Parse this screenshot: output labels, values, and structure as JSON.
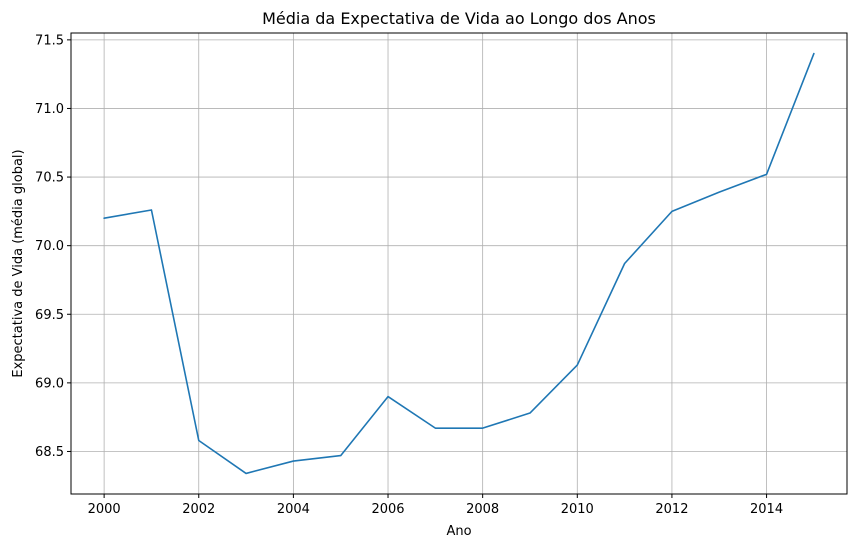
{
  "chart_data": {
    "type": "line",
    "title": "Média da Expectativa de Vida ao Longo dos Anos",
    "xlabel": "Ano",
    "ylabel": "Expectativa de Vida (média global)",
    "xlim": [
      1999.3,
      2015.7
    ],
    "ylim": [
      68.19,
      71.55
    ],
    "xticks": [
      2000,
      2002,
      2004,
      2006,
      2008,
      2010,
      2012,
      2014
    ],
    "xtick_labels": [
      "2000",
      "2002",
      "2004",
      "2006",
      "2008",
      "2010",
      "2012",
      "2014"
    ],
    "yticks": [
      68.5,
      69.0,
      69.5,
      70.0,
      70.5,
      71.0,
      71.5
    ],
    "ytick_labels": [
      "68.5",
      "69.0",
      "69.5",
      "70.0",
      "70.5",
      "71.0",
      "71.5"
    ],
    "grid": true,
    "series": [
      {
        "color": "#1f77b4",
        "x": [
          2000,
          2001,
          2002,
          2003,
          2004,
          2005,
          2006,
          2007,
          2008,
          2009,
          2010,
          2011,
          2012,
          2013,
          2014,
          2015
        ],
        "y": [
          70.2,
          70.26,
          68.58,
          68.34,
          68.43,
          68.47,
          68.9,
          68.67,
          68.67,
          68.78,
          69.13,
          69.87,
          70.25,
          70.39,
          70.52,
          71.4
        ]
      }
    ]
  }
}
